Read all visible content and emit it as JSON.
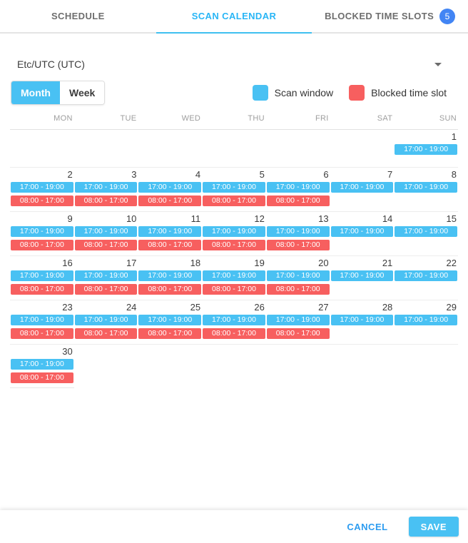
{
  "tabs": [
    {
      "label": "SCHEDULE",
      "active": false
    },
    {
      "label": "SCAN CALENDAR",
      "active": true
    },
    {
      "label": "BLOCKED TIME SLOTS",
      "active": false,
      "badge": "5"
    }
  ],
  "timezone": {
    "value": "Etc/UTC (UTC)"
  },
  "view_toggle": {
    "month_label": "Month",
    "week_label": "Week",
    "selected": "Month"
  },
  "legend": [
    {
      "label": "Scan window",
      "color": "#49c1f3"
    },
    {
      "label": "Blocked time slot",
      "color": "#f75f5f"
    }
  ],
  "calendar": {
    "day_headers": [
      "MON",
      "TUE",
      "WED",
      "THU",
      "FRI",
      "SAT",
      "SUN"
    ],
    "event_labels": {
      "scan": "17:00 - 19:00",
      "blocked": "08:00 - 17:00"
    },
    "weeks": [
      [
        {
          "day": null,
          "events": []
        },
        {
          "day": null,
          "events": []
        },
        {
          "day": null,
          "events": []
        },
        {
          "day": null,
          "events": []
        },
        {
          "day": null,
          "events": []
        },
        {
          "day": null,
          "events": []
        },
        {
          "day": 1,
          "events": [
            "scan"
          ]
        }
      ],
      [
        {
          "day": 2,
          "events": [
            "scan",
            "blocked"
          ]
        },
        {
          "day": 3,
          "events": [
            "scan",
            "blocked"
          ]
        },
        {
          "day": 4,
          "events": [
            "scan",
            "blocked"
          ]
        },
        {
          "day": 5,
          "events": [
            "scan",
            "blocked"
          ]
        },
        {
          "day": 6,
          "events": [
            "scan",
            "blocked"
          ]
        },
        {
          "day": 7,
          "events": [
            "scan"
          ]
        },
        {
          "day": 8,
          "events": [
            "scan"
          ]
        }
      ],
      [
        {
          "day": 9,
          "events": [
            "scan",
            "blocked"
          ]
        },
        {
          "day": 10,
          "events": [
            "scan",
            "blocked"
          ]
        },
        {
          "day": 11,
          "events": [
            "scan",
            "blocked"
          ]
        },
        {
          "day": 12,
          "events": [
            "scan",
            "blocked"
          ]
        },
        {
          "day": 13,
          "events": [
            "scan",
            "blocked"
          ]
        },
        {
          "day": 14,
          "events": [
            "scan"
          ]
        },
        {
          "day": 15,
          "events": [
            "scan"
          ]
        }
      ],
      [
        {
          "day": 16,
          "events": [
            "scan",
            "blocked"
          ]
        },
        {
          "day": 17,
          "events": [
            "scan",
            "blocked"
          ]
        },
        {
          "day": 18,
          "events": [
            "scan",
            "blocked"
          ]
        },
        {
          "day": 19,
          "events": [
            "scan",
            "blocked"
          ]
        },
        {
          "day": 20,
          "events": [
            "scan",
            "blocked"
          ]
        },
        {
          "day": 21,
          "events": [
            "scan"
          ]
        },
        {
          "day": 22,
          "events": [
            "scan"
          ]
        }
      ],
      [
        {
          "day": 23,
          "events": [
            "scan",
            "blocked"
          ]
        },
        {
          "day": 24,
          "events": [
            "scan",
            "blocked"
          ]
        },
        {
          "day": 25,
          "events": [
            "scan",
            "blocked"
          ]
        },
        {
          "day": 26,
          "events": [
            "scan",
            "blocked"
          ]
        },
        {
          "day": 27,
          "events": [
            "scan",
            "blocked"
          ]
        },
        {
          "day": 28,
          "events": [
            "scan"
          ]
        },
        {
          "day": 29,
          "events": [
            "scan"
          ]
        }
      ],
      [
        {
          "day": 30,
          "events": [
            "scan",
            "blocked"
          ]
        },
        {
          "day": null,
          "events": []
        },
        {
          "day": null,
          "events": []
        },
        {
          "day": null,
          "events": []
        },
        {
          "day": null,
          "events": []
        },
        {
          "day": null,
          "events": []
        },
        {
          "day": null,
          "events": []
        }
      ]
    ]
  },
  "footer": {
    "cancel_label": "CANCEL",
    "save_label": "SAVE"
  },
  "colors": {
    "accent_cyan": "#49c1f3",
    "tab_active": "#29b6f6",
    "badge_blue": "#4285f4",
    "blocked_red": "#f75f5f",
    "cancel_blue": "#2d9cf0"
  }
}
